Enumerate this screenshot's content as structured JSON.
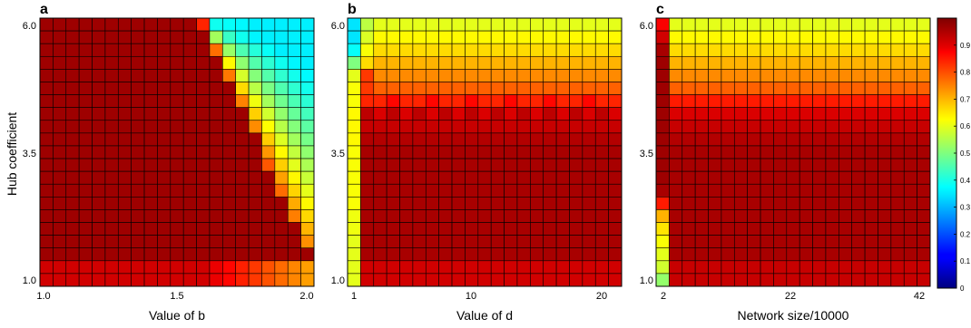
{
  "chart_data": {
    "type": "heatmap",
    "shared": {
      "ylabel": "Hub coefficient",
      "ylim": [
        1.0,
        6.0
      ],
      "y_ticks": [
        1.0,
        3.5,
        6.0
      ],
      "y_tick_labels": [
        "1.0",
        "3.5",
        "6.0"
      ],
      "grid": "cell borders (black)",
      "colormap": "jet",
      "colorbar": {
        "range": [
          0,
          1
        ],
        "ticks": [
          0,
          0.1,
          0.2,
          0.3,
          0.4,
          0.5,
          0.6,
          0.7,
          0.8,
          0.9
        ],
        "tick_labels": [
          "0",
          "0.1",
          "0.2",
          "0.3",
          "0.4",
          "0.5",
          "0.6",
          "0.7",
          "0.8",
          "0.9"
        ],
        "placement": "right"
      }
    },
    "panels": [
      {
        "letter": "a",
        "xlabel": "Value of b",
        "xlim": [
          1.0,
          2.0
        ],
        "x_ticks": [
          1.0,
          1.5,
          2.0
        ],
        "x_tick_labels": [
          "1.0",
          "1.5",
          "2.0"
        ],
        "columns": 21,
        "rows": 21,
        "model": "diagonal",
        "boundary_start_col": 12,
        "boundary_slope": 2.2
      },
      {
        "letter": "b",
        "xlabel": "Value of d",
        "xlim": [
          1,
          21
        ],
        "x_ticks": [
          1,
          10,
          20
        ],
        "x_tick_labels": [
          "1",
          "10",
          "20"
        ],
        "columns": 21,
        "rows": 21,
        "model": "horizontal",
        "first_column_values": [
          0.35,
          0.35,
          0.38,
          0.5,
          0.6,
          0.62,
          0.62,
          0.63,
          0.63,
          0.63,
          0.62,
          0.62,
          0.62,
          0.62,
          0.62,
          0.61,
          0.61,
          0.6,
          0.6,
          0.6,
          0.6
        ]
      },
      {
        "letter": "c",
        "xlabel": "Network size/10000",
        "xlim": [
          2,
          42
        ],
        "x_ticks": [
          2,
          22,
          42
        ],
        "x_tick_labels": [
          "2",
          "22",
          "42"
        ],
        "columns": 21,
        "rows": 21,
        "model": "horizontal",
        "first_column_values": [
          0.88,
          0.92,
          0.96,
          0.97,
          0.97,
          0.97,
          0.97,
          0.97,
          0.97,
          0.97,
          0.97,
          0.97,
          0.97,
          0.96,
          0.85,
          0.7,
          0.65,
          0.62,
          0.6,
          0.58,
          0.52
        ]
      }
    ],
    "row_profile_top_rows": [
      0.6,
      0.63,
      0.66,
      0.7,
      0.74,
      0.78,
      0.85,
      0.9,
      0.93,
      0.95
    ]
  }
}
